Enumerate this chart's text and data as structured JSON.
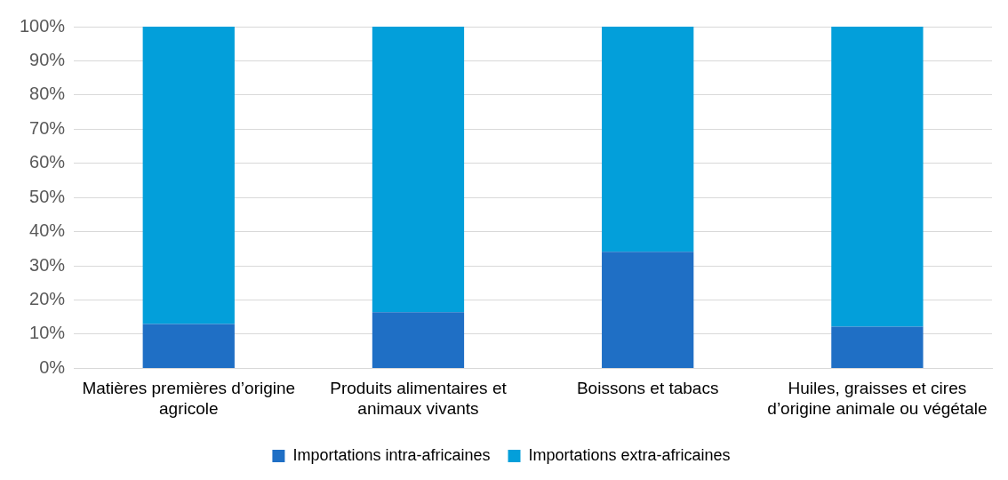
{
  "chart_data": {
    "type": "bar",
    "stacked": true,
    "categories": [
      "Matières premières d’origine agricole",
      "Produits alimentaires et animaux vivants",
      "Boissons et tabacs",
      "Huiles, graisses et cires d’origine animale ou végétale"
    ],
    "series": [
      {
        "name": "Importations intra-africaines",
        "color": "#1f6fc5",
        "values": [
          13,
          16.4,
          34.1,
          12.2
        ]
      },
      {
        "name": "Importations extra-africaines",
        "color": "#039fda",
        "values": [
          87,
          83.6,
          65.9,
          87.8
        ]
      }
    ],
    "ylim": [
      0,
      100
    ],
    "yticks": [
      {
        "value": 0,
        "label": "0%"
      },
      {
        "value": 10,
        "label": "10%"
      },
      {
        "value": 20,
        "label": "20%"
      },
      {
        "value": 30,
        "label": "30%"
      },
      {
        "value": 40,
        "label": "40%"
      },
      {
        "value": 50,
        "label": "50%"
      },
      {
        "value": 60,
        "label": "60%"
      },
      {
        "value": 70,
        "label": "70%"
      },
      {
        "value": 80,
        "label": "80%"
      },
      {
        "value": 90,
        "label": "90%"
      },
      {
        "value": 100,
        "label": "100%"
      }
    ],
    "grid": "y",
    "legend": "bottom"
  }
}
